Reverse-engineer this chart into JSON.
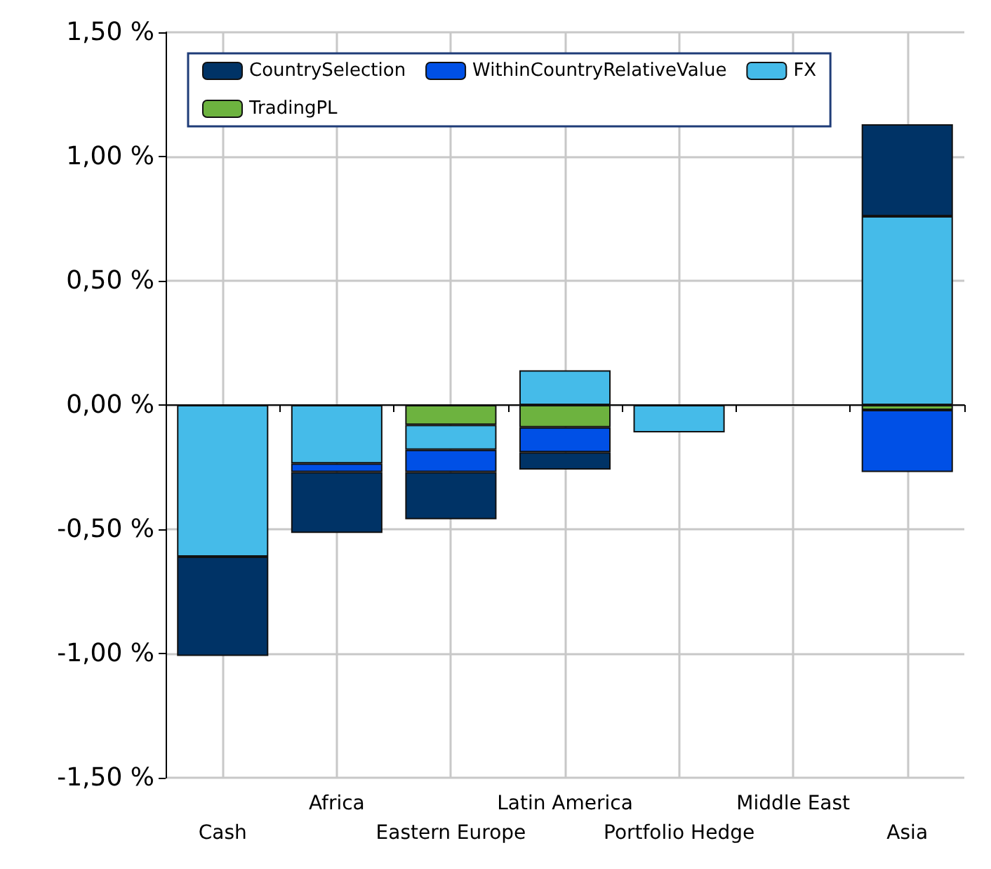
{
  "chart_data": {
    "type": "bar",
    "stacked": true,
    "categories": [
      "Cash",
      "Africa",
      "Eastern Europe",
      "Latin America",
      "Portfolio Hedge",
      "Middle East",
      "Asia"
    ],
    "series": [
      {
        "name": "TradingPL",
        "color": "#6db33f",
        "values": [
          0,
          0,
          -0.08,
          -0.09,
          0,
          0,
          -0.02
        ]
      },
      {
        "name": "FX",
        "color": "#45bbe9",
        "values": [
          -0.61,
          -0.235,
          -0.1,
          0.14,
          -0.11,
          0,
          0.76
        ]
      },
      {
        "name": "WithinCountryRelativeValue",
        "color": "#0050e6",
        "values": [
          0,
          -0.035,
          -0.09,
          -0.1,
          0,
          0,
          -0.25
        ]
      },
      {
        "name": "CountrySelection",
        "color": "#003366",
        "values": [
          -0.4,
          -0.245,
          -0.19,
          -0.07,
          0,
          0,
          0.37
        ]
      }
    ],
    "ylim": [
      -1.5,
      1.5
    ],
    "yticks": [
      {
        "value": -1.5,
        "label": "-1,50 %"
      },
      {
        "value": -1,
        "label": "-1,00 %"
      },
      {
        "value": -0.5,
        "label": "-0,50 %"
      },
      {
        "value": 0,
        "label": "0,00 %"
      },
      {
        "value": 0.5,
        "label": "0,50 %"
      },
      {
        "value": 1,
        "label": "1,00 %"
      },
      {
        "value": 1.5,
        "label": "1,50 %"
      }
    ],
    "grid": true,
    "legend": "top left"
  }
}
